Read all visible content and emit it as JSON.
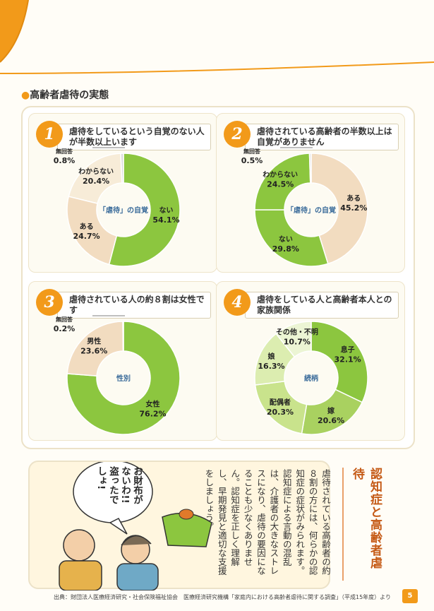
{
  "section_title": "高齢者虐待の実態",
  "colors": {
    "green": "#8cc63f",
    "beige": "#f2dcc0",
    "light_green": "#c9e38c",
    "accent": "#f29a1a"
  },
  "chart_data": [
    {
      "type": "pie",
      "number": "1",
      "caption": "虐待をしているという自覚のない人が半数以上います",
      "center_label": "「虐待」の自覚",
      "slices": [
        {
          "label": "ない",
          "value": 54.1,
          "color": "#8cc63f"
        },
        {
          "label": "ある",
          "value": 24.7,
          "color": "#f2dcc0"
        },
        {
          "label": "わからない",
          "value": 20.4,
          "color": "#f7ecd8"
        },
        {
          "label": "無回答",
          "value": 0.8,
          "color": "#dddddd"
        }
      ]
    },
    {
      "type": "pie",
      "number": "2",
      "caption": "虐待されている高齢者の半数以上は自覚がありません",
      "center_label": "「虐待」の自覚",
      "slices": [
        {
          "label": "ある",
          "value": 45.2,
          "color": "#f2dcc0"
        },
        {
          "label": "ない",
          "value": 29.8,
          "color": "#8cc63f"
        },
        {
          "label": "わからない",
          "value": 24.5,
          "color": "#8cc63f"
        },
        {
          "label": "無回答",
          "value": 0.5,
          "color": "#dddddd"
        }
      ]
    },
    {
      "type": "pie",
      "number": "3",
      "caption": "虐待されている人の約８割は女性です",
      "center_label": "性別",
      "slices": [
        {
          "label": "女性",
          "value": 76.2,
          "color": "#8cc63f"
        },
        {
          "label": "男性",
          "value": 23.6,
          "color": "#f2dcc0"
        },
        {
          "label": "無回答",
          "value": 0.2,
          "color": "#dddddd"
        }
      ]
    },
    {
      "type": "pie",
      "number": "4",
      "caption": "虐待をしている人と高齢者本人との家族関係",
      "center_label": "続柄",
      "slices": [
        {
          "label": "息子",
          "value": 32.1,
          "color": "#8cc63f"
        },
        {
          "label": "嫁",
          "value": 20.6,
          "color": "#a9d160"
        },
        {
          "label": "配偶者",
          "value": 20.3,
          "color": "#c9e38c"
        },
        {
          "label": "娘",
          "value": 16.3,
          "color": "#dcedb0"
        },
        {
          "label": "その他・不明",
          "value": 10.7,
          "color": "#ecf5d4"
        }
      ]
    }
  ],
  "speech_bubble": "お財布がないわ!! 盗ったでしょ!",
  "side_title": "認知症と高齢者虐待",
  "side_body": "虐待されている高齢者の約８割の方には、何らかの認知症の症状がみられます。認知症による言動の混乱は、介護者の大きなストレスになり、虐待の要因になることも少なくありません。認知症を正しく理解し、早期発見と適切な支援をしましょう。",
  "source": "出典：財団法人医療経済研究・社会保険福祉協会　医療経済研究機構「家庭内における高齢者虐待に関する調査」（平成15年度）より",
  "page_number": "5"
}
